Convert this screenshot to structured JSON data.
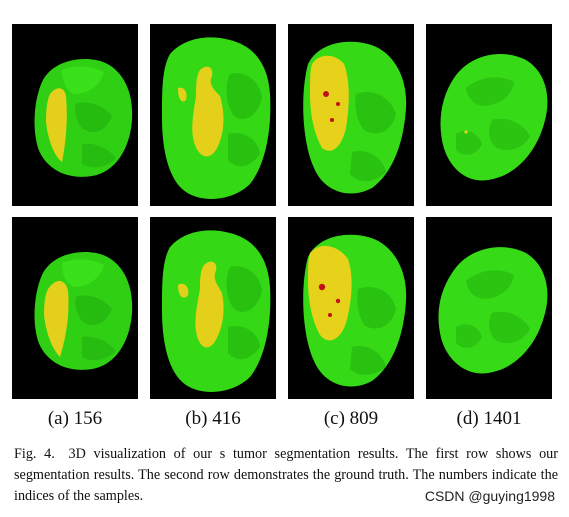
{
  "figure": {
    "colors": {
      "background": "#000000",
      "tumor_green": "#33dd11",
      "tumor_yellow": "#e6d21a",
      "core_red": "#c0101a"
    },
    "rows": [
      {
        "row": "first",
        "description_ref": "our segmentation results"
      },
      {
        "row": "second",
        "description_ref": "ground truth"
      }
    ],
    "subcaptions": [
      "(a) 156",
      "(b) 416",
      "(c) 809",
      "(d) 1401"
    ],
    "caption": {
      "label": "Fig. 4.",
      "text": "3D visualization of our s tumor segmentation results. The first row shows our segmentation results. The second row demonstrates the ground truth. The numbers indicate the indices of the samples."
    }
  },
  "watermark": "CSDN @guying1998"
}
